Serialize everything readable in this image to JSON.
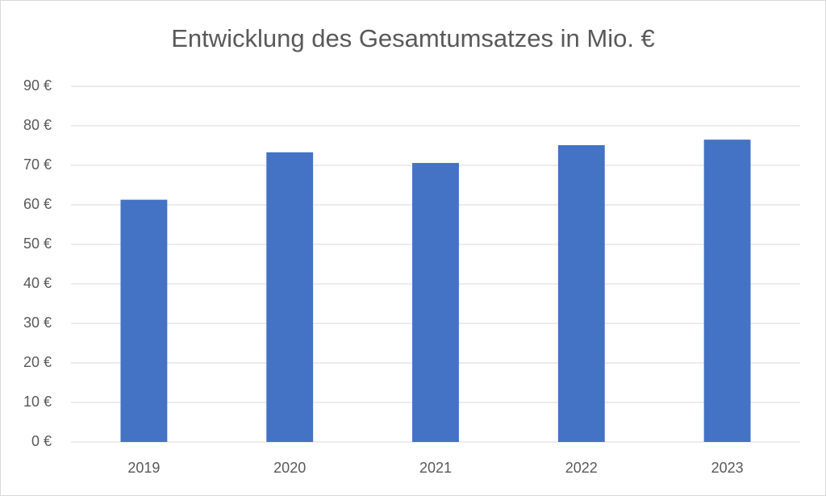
{
  "chart_data": {
    "type": "bar",
    "title": "Entwicklung des Gesamtumsatzes in Mio. €",
    "categories": [
      "2019",
      "2020",
      "2021",
      "2022",
      "2023"
    ],
    "values": [
      61.3,
      73.3,
      70.6,
      75.1,
      76.5
    ],
    "color": "#4472c4",
    "ylim": [
      0,
      90
    ],
    "yticks": [
      {
        "value": 0,
        "label": "0 €"
      },
      {
        "value": 10,
        "label": "10 €"
      },
      {
        "value": 20,
        "label": "20 €"
      },
      {
        "value": 30,
        "label": "30 €"
      },
      {
        "value": 40,
        "label": "40 €"
      },
      {
        "value": 50,
        "label": "50 €"
      },
      {
        "value": 60,
        "label": "60 €"
      },
      {
        "value": 70,
        "label": "70 €"
      },
      {
        "value": 80,
        "label": "80 €"
      },
      {
        "value": 90,
        "label": "90 €"
      }
    ],
    "grid": true
  }
}
